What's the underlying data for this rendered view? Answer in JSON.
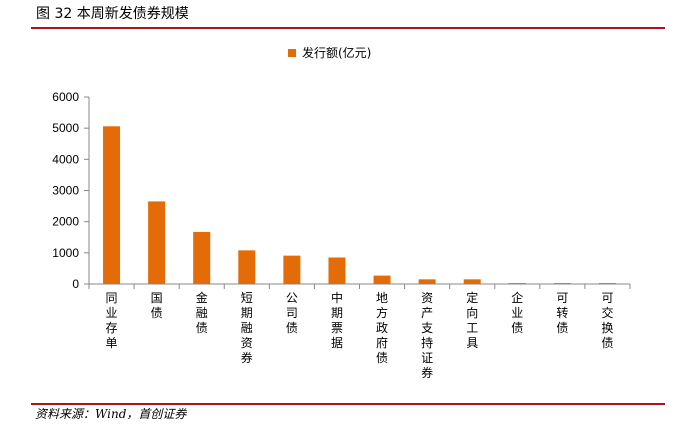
{
  "figure": {
    "title": "图 32 本周新发债券规模",
    "source": "资料来源：Wind，首创证券"
  },
  "colors": {
    "bar": "#e36c09",
    "rule": "#b0121b",
    "axis": "#888888"
  },
  "chart_data": {
    "type": "bar",
    "title": "",
    "xlabel": "",
    "ylabel": "",
    "legend": {
      "position": "top-center"
    },
    "grid": false,
    "ylim": [
      0,
      6000
    ],
    "yticks": [
      0,
      1000,
      2000,
      3000,
      4000,
      5000,
      6000
    ],
    "categories": [
      "同业存单",
      "国债",
      "金融债",
      "短期融资券",
      "公司债",
      "中期票据",
      "地方政府债",
      "资产支持证券",
      "定向工具",
      "企业债",
      "可转债",
      "可交换债"
    ],
    "series": [
      {
        "name": "发行额(亿元)",
        "values": [
          5060,
          2650,
          1670,
          1080,
          910,
          850,
          270,
          150,
          150,
          30,
          30,
          30
        ]
      }
    ]
  }
}
